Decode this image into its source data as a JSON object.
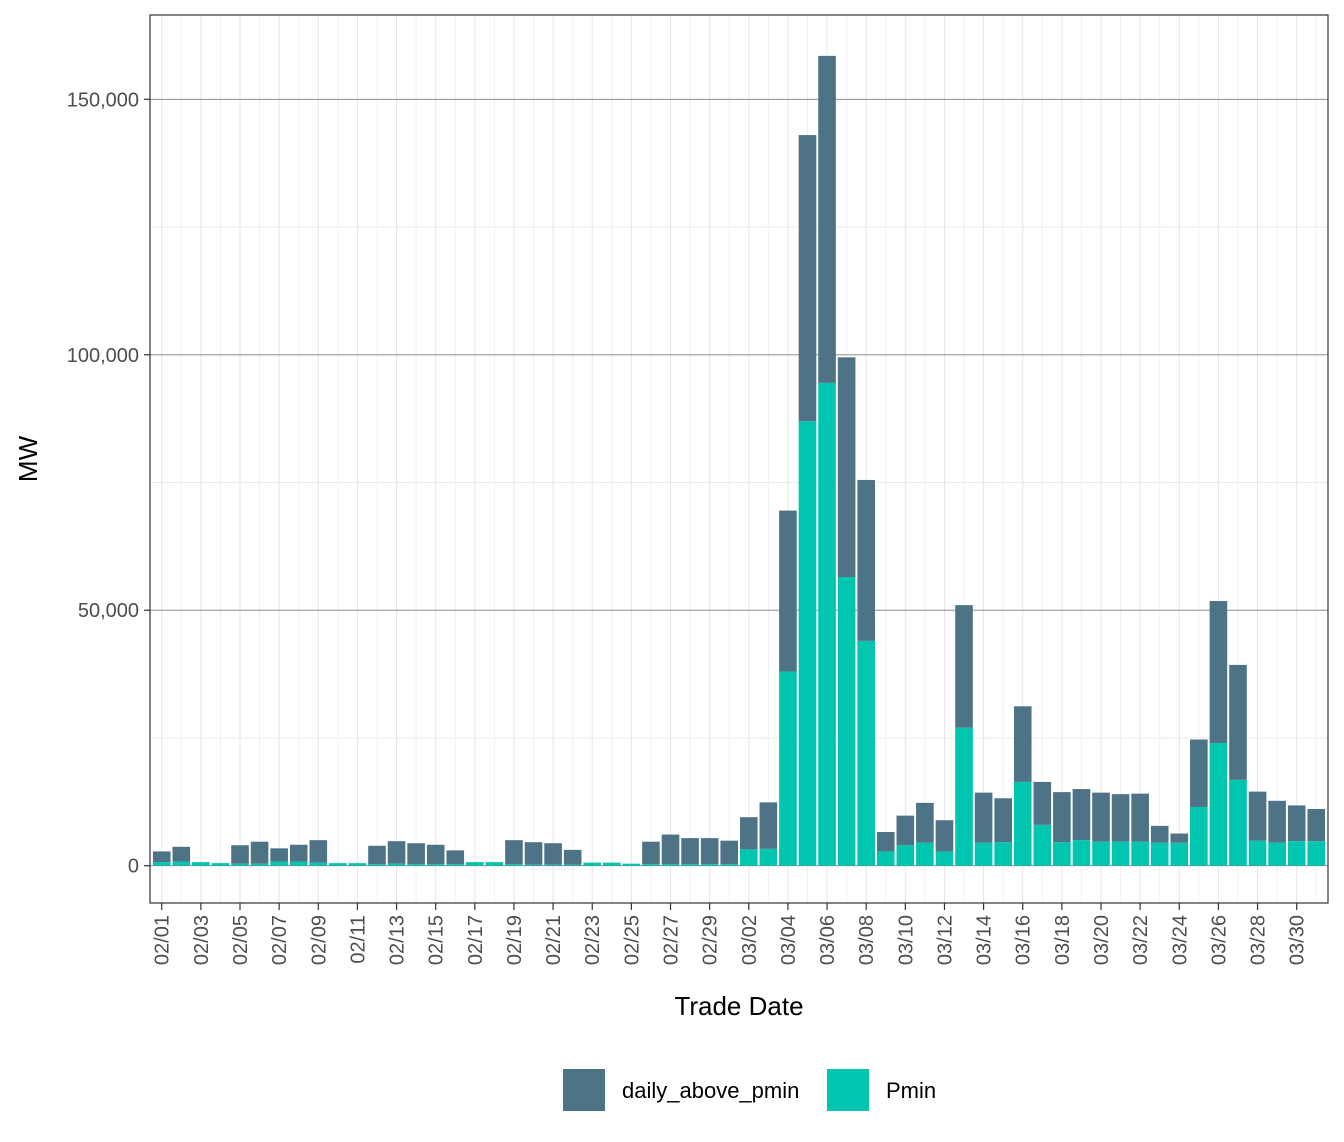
{
  "chart_data": {
    "type": "bar",
    "stacked": true,
    "xlabel": "Trade Date",
    "ylabel": "MW",
    "ylim": [
      -7300,
      166500
    ],
    "yticks": [
      0,
      50000,
      100000,
      150000
    ],
    "ytick_labels": [
      "0",
      "50,000",
      "100,000",
      "150,000"
    ],
    "grid": true,
    "legend_position": "bottom",
    "categories": [
      "02/01",
      "02/02",
      "02/03",
      "02/04",
      "02/05",
      "02/06",
      "02/07",
      "02/08",
      "02/09",
      "02/10",
      "02/11",
      "02/12",
      "02/13",
      "02/14",
      "02/15",
      "02/16",
      "02/17",
      "02/18",
      "02/19",
      "02/20",
      "02/21",
      "02/22",
      "02/23",
      "02/24",
      "02/25",
      "02/26",
      "02/27",
      "02/28",
      "02/29",
      "03/01",
      "03/02",
      "03/03",
      "03/04",
      "03/05",
      "03/06",
      "03/07",
      "03/08",
      "03/09",
      "03/10",
      "03/11",
      "03/12",
      "03/13",
      "03/14",
      "03/15",
      "03/16",
      "03/17",
      "03/18",
      "03/19",
      "03/20",
      "03/21",
      "03/22",
      "03/23",
      "03/24",
      "03/25",
      "03/26",
      "03/27",
      "03/28",
      "03/29",
      "03/30",
      "03/31"
    ],
    "xtick_labels": [
      "02/01",
      "02/03",
      "02/05",
      "02/07",
      "02/09",
      "02/11",
      "02/13",
      "02/15",
      "02/17",
      "02/19",
      "02/21",
      "02/23",
      "02/25",
      "02/27",
      "02/29",
      "03/02",
      "03/04",
      "03/06",
      "03/08",
      "03/10",
      "03/12",
      "03/14",
      "03/16",
      "03/18",
      "03/20",
      "03/22",
      "03/24",
      "03/26",
      "03/28",
      "03/30"
    ],
    "series": [
      {
        "name": "Pmin",
        "color": "#00c6b0",
        "values": [
          700,
          800,
          700,
          500,
          400,
          400,
          800,
          800,
          600,
          500,
          500,
          300,
          400,
          300,
          300,
          300,
          700,
          700,
          300,
          200,
          200,
          200,
          600,
          600,
          400,
          300,
          300,
          300,
          300,
          300,
          3200,
          3300,
          38000,
          87000,
          94500,
          56500,
          44000,
          2800,
          4000,
          4500,
          2800,
          27000,
          4500,
          4600,
          16400,
          8000,
          4600,
          5000,
          4700,
          4700,
          4700,
          4500,
          4500,
          11500,
          24000,
          16800,
          4900,
          4500,
          4800,
          4800
        ]
      },
      {
        "name": "daily_above_pmin",
        "color": "#4e7387",
        "values": [
          2100,
          2900,
          0,
          0,
          3600,
          4300,
          2600,
          3300,
          4400,
          0,
          0,
          3600,
          4400,
          4100,
          3800,
          2700,
          0,
          0,
          4700,
          4400,
          4200,
          2900,
          0,
          0,
          0,
          4400,
          5800,
          5100,
          5100,
          4600,
          6300,
          9100,
          31500,
          56000,
          64000,
          43000,
          31500,
          3800,
          5800,
          7800,
          6100,
          24000,
          9800,
          8600,
          14800,
          8400,
          9800,
          10000,
          9600,
          9300,
          9400,
          3300,
          1800,
          13200,
          27800,
          22500,
          9600,
          8200,
          7000,
          6300
        ]
      }
    ]
  }
}
